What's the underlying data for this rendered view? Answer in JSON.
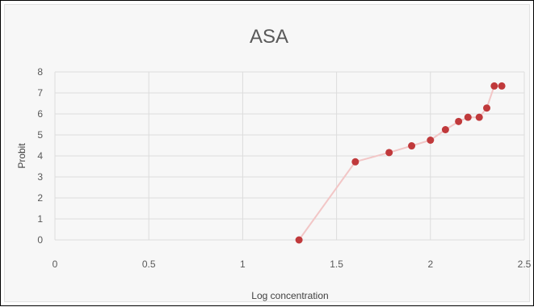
{
  "chart_data": {
    "type": "scatter",
    "title": "ASA",
    "xlabel": "Log concentration",
    "ylabel": "Probit",
    "xlim": [
      0,
      2.5
    ],
    "ylim": [
      0,
      8
    ],
    "xticks": [
      0,
      0.5,
      1,
      1.5,
      2,
      2.5
    ],
    "yticks": [
      0,
      1,
      2,
      3,
      4,
      5,
      6,
      7,
      8
    ],
    "xtick_labels": [
      "0",
      "0.5",
      "1",
      "1.5",
      "2",
      "2.5"
    ],
    "ytick_labels": [
      "0",
      "1",
      "2",
      "3",
      "4",
      "5",
      "6",
      "7",
      "8"
    ],
    "grid": true,
    "connected": true,
    "series": [
      {
        "x": [
          1.3,
          1.6,
          1.78,
          1.9,
          2.0,
          2.08,
          2.15,
          2.2,
          2.26,
          2.3,
          2.34,
          2.38
        ],
        "y": [
          0.0,
          3.72,
          4.16,
          4.48,
          4.75,
          5.25,
          5.64,
          5.84,
          5.84,
          6.28,
          7.33,
          7.33
        ]
      }
    ],
    "colors": {
      "marker": "#c0393b",
      "line": "#f2c6c6",
      "grid": "#dcdcdc",
      "background": "#f7f7f7"
    }
  }
}
